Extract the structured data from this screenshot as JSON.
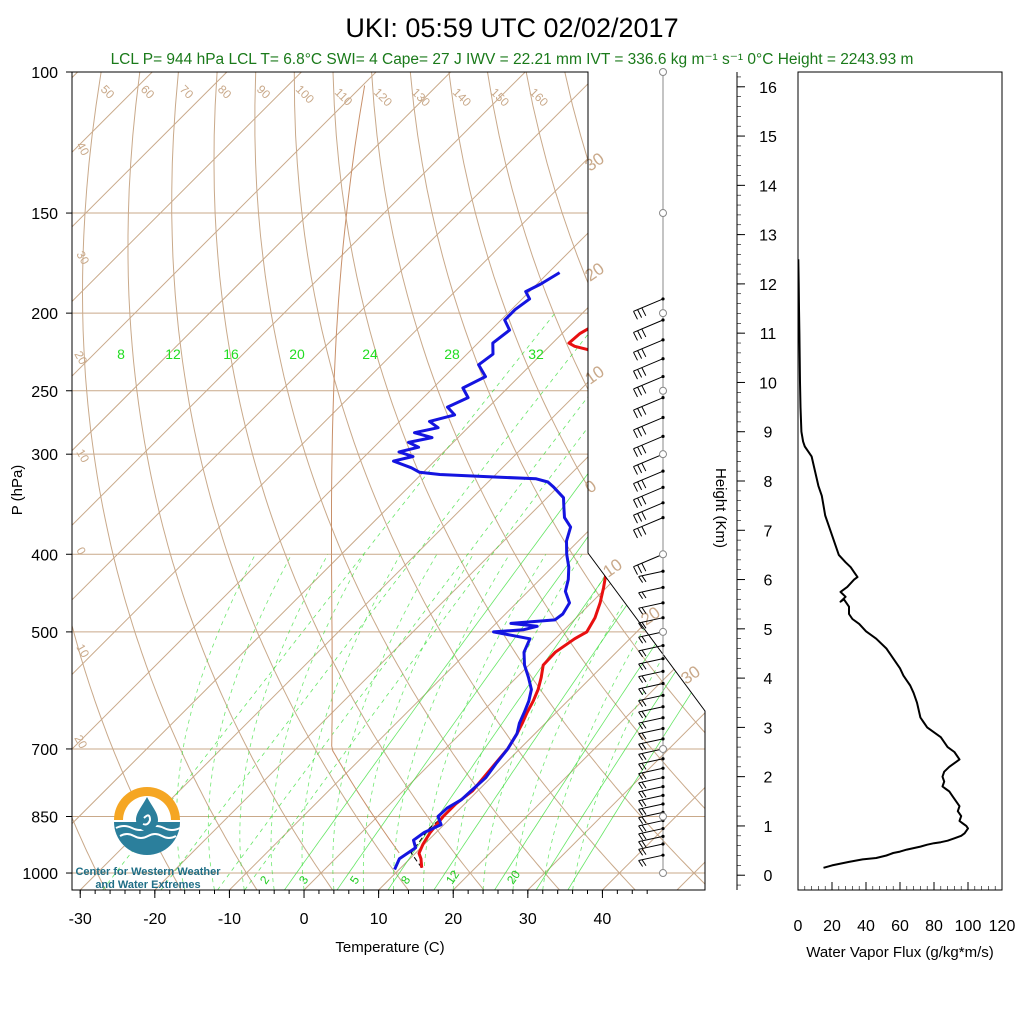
{
  "title": "UKI: 05:59 UTC 02/02/2017",
  "subtitle": "LCL P= 944 hPa  LCL T= 6.8°C  SWI= 4  Cape= 27 J  IWV = 22.21 mm  IVT = 336.6 kg m⁻¹ s⁻¹  0°C Height = 2243.93 m",
  "logo": {
    "line1": "Center for Western Weather",
    "line2": "and Water Extremes"
  },
  "colors": {
    "temperature": "#e81010",
    "dewpoint": "#1414e0",
    "isotherm": "#c9a98a",
    "mixing_ratio": "#33dd33",
    "flux": "#000000",
    "annotation": "#1a7a1a"
  },
  "chart_data": [
    {
      "type": "line",
      "title": "",
      "xlabel": "Temperature (C)",
      "ylabel": "P (hPa)",
      "xlim": [
        -34,
        52
      ],
      "ylim": [
        1050,
        100
      ],
      "y_scale": "log",
      "x_ticks": [
        -30,
        -20,
        -10,
        0,
        10,
        20,
        30,
        40
      ],
      "y_ticks": [
        100,
        150,
        200,
        250,
        300,
        400,
        500,
        700,
        850,
        1000
      ],
      "isotherm_labels": [
        "50",
        "60",
        "70",
        "80",
        "90",
        "100",
        "110",
        "120",
        "130",
        "140",
        "150",
        "160"
      ],
      "dry_adiabat_labels": [
        "40",
        "30",
        "20",
        "10",
        "0",
        "10",
        "20",
        "30"
      ],
      "right_dry_adiabat_labels": [
        "30",
        "20",
        "10",
        "0",
        "10",
        "20",
        "30"
      ],
      "mixing_ratio_top_labels": [
        "8",
        "12",
        "16",
        "20",
        "24",
        "28",
        "32"
      ],
      "mixing_ratio_bottom_labels": [
        "2",
        "3",
        "5",
        "8",
        "12",
        "20"
      ],
      "series": [
        {
          "name": "",
          "color": "#e81010",
          "points": [
            [
              12.8,
              985
            ],
            [
              11.5,
              960
            ],
            [
              10.5,
              945
            ],
            [
              9.8,
              920
            ],
            [
              9.2,
              890
            ],
            [
              8.8,
              850
            ],
            [
              8.8,
              820
            ],
            [
              9.3,
              790
            ],
            [
              9.0,
              760
            ],
            [
              8.7,
              730
            ],
            [
              8.4,
              700
            ],
            [
              7.6,
              670
            ],
            [
              6.9,
              650
            ],
            [
              6.1,
              630
            ],
            [
              5.4,
              610
            ],
            [
              4.5,
              590
            ],
            [
              3.3,
              570
            ],
            [
              1.9,
              550
            ],
            [
              1.8,
              530
            ],
            [
              2.6,
              510
            ],
            [
              3.3,
              500
            ],
            [
              2.5,
              480
            ],
            [
              1.2,
              460
            ],
            [
              -0.4,
              440
            ],
            [
              -2.2,
              420
            ],
            [
              -4.2,
              400
            ],
            [
              -6.5,
              380
            ],
            [
              -8.8,
              360
            ],
            [
              -10.8,
              345
            ],
            [
              -12.8,
              330
            ],
            [
              -14.5,
              315
            ],
            [
              -15.8,
              300
            ],
            [
              -17.3,
              285
            ],
            [
              -19.3,
              270
            ],
            [
              -21.0,
              260
            ],
            [
              -23.5,
              250
            ],
            [
              -27.0,
              238
            ],
            [
              -31.0,
              228
            ],
            [
              -34.5,
              222
            ],
            [
              -36.6,
              220
            ],
            [
              -37.8,
              218
            ],
            [
              -37.6,
              212
            ],
            [
              -36.6,
              206
            ],
            [
              -36.4,
              200
            ],
            [
              -34.8,
              196
            ],
            [
              -33.0,
              192
            ],
            [
              -30.5,
              188
            ],
            [
              -28.4,
              185
            ],
            [
              -27.4,
              182
            ],
            [
              -26.5,
              180
            ]
          ]
        },
        {
          "name": "",
          "color": "#1414e0",
          "points": [
            [
              9.4,
              990
            ],
            [
              8.6,
              960
            ],
            [
              9.3,
              930
            ],
            [
              8.0,
              910
            ],
            [
              8.4,
              890
            ],
            [
              9.6,
              870
            ],
            [
              8.1,
              850
            ],
            [
              8.2,
              830
            ],
            [
              9.0,
              810
            ],
            [
              9.1,
              790
            ],
            [
              9.3,
              760
            ],
            [
              8.8,
              730
            ],
            [
              8.4,
              700
            ],
            [
              7.6,
              670
            ],
            [
              6.5,
              650
            ],
            [
              5.7,
              630
            ],
            [
              4.8,
              610
            ],
            [
              3.6,
              590
            ],
            [
              1.6,
              570
            ],
            [
              -0.6,
              550
            ],
            [
              -2.4,
              530
            ],
            [
              -3.4,
              510
            ],
            [
              -9.2,
              500
            ],
            [
              -5.5,
              497
            ],
            [
              -4.1,
              492
            ],
            [
              -8.0,
              488
            ],
            [
              -2.6,
              483
            ],
            [
              -2.3,
              475
            ],
            [
              -2.9,
              460
            ],
            [
              -5.0,
              445
            ],
            [
              -6.2,
              430
            ],
            [
              -7.8,
              415
            ],
            [
              -9.8,
              400
            ],
            [
              -11.6,
              385
            ],
            [
              -12.9,
              370
            ],
            [
              -15.0,
              360
            ],
            [
              -16.4,
              350
            ],
            [
              -17.8,
              340
            ],
            [
              -20.5,
              330
            ],
            [
              -22.0,
              325
            ],
            [
              -24.0,
              322
            ],
            [
              -31.0,
              320
            ],
            [
              -37.5,
              318
            ],
            [
              -40.5,
              316
            ],
            [
              -42.2,
              312
            ],
            [
              -45.5,
              306
            ],
            [
              -43.5,
              302
            ],
            [
              -46.0,
              298
            ],
            [
              -44.0,
              294
            ],
            [
              -46.0,
              290
            ],
            [
              -43.5,
              286
            ],
            [
              -46.5,
              282
            ],
            [
              -44.0,
              278
            ],
            [
              -46.0,
              273
            ],
            [
              -43.5,
              268
            ],
            [
              -45.5,
              262
            ],
            [
              -44.0,
              255
            ],
            [
              -46.0,
              248
            ],
            [
              -44.5,
              240
            ],
            [
              -47.0,
              232
            ],
            [
              -46.5,
              225
            ],
            [
              -48.0,
              218
            ],
            [
              -47.5,
              210
            ],
            [
              -49.5,
              204
            ],
            [
              -49.5,
              198
            ],
            [
              -49.0,
              192
            ],
            [
              -50.5,
              188
            ],
            [
              -49.5,
              184
            ],
            [
              -49.0,
              181
            ],
            [
              -48.5,
              178
            ]
          ]
        }
      ],
      "wind_barb_levels_hPa": [
        950,
        920,
        900,
        880,
        860,
        840,
        820,
        800,
        780,
        760,
        740,
        720,
        700,
        680,
        660,
        640,
        620,
        600,
        580,
        560,
        540,
        520,
        500,
        480,
        460,
        440,
        420,
        400,
        360,
        345,
        330,
        315,
        300,
        285,
        270,
        255,
        240,
        228,
        216,
        204,
        192
      ]
    },
    {
      "type": "line",
      "title": "",
      "xlabel": "Water Vapor Flux (g/kg*m/s)",
      "ylabel": "Height (Km)",
      "xlim": [
        0,
        120
      ],
      "ylim": [
        -0.3,
        16.3
      ],
      "x_ticks": [
        0,
        20,
        40,
        60,
        80,
        100,
        120
      ],
      "y_ticks": [
        0,
        1,
        2,
        3,
        4,
        5,
        6,
        7,
        8,
        9,
        10,
        11,
        12,
        13,
        14,
        15,
        16
      ],
      "series": [
        {
          "name": "",
          "color": "#000000",
          "points": [
            [
              15,
              0.15
            ],
            [
              20,
              0.2
            ],
            [
              30,
              0.27
            ],
            [
              38,
              0.32
            ],
            [
              46,
              0.35
            ],
            [
              52,
              0.4
            ],
            [
              56,
              0.45
            ],
            [
              60,
              0.48
            ],
            [
              64,
              0.52
            ],
            [
              68,
              0.55
            ],
            [
              72,
              0.58
            ],
            [
              76,
              0.62
            ],
            [
              80,
              0.65
            ],
            [
              84,
              0.67
            ],
            [
              88,
              0.7
            ],
            [
              92,
              0.75
            ],
            [
              96,
              0.8
            ],
            [
              98,
              0.85
            ],
            [
              100,
              0.95
            ],
            [
              99,
              1.0
            ],
            [
              97,
              1.05
            ],
            [
              95,
              1.1
            ],
            [
              96,
              1.2
            ],
            [
              94,
              1.3
            ],
            [
              95,
              1.4
            ],
            [
              93,
              1.5
            ],
            [
              91,
              1.6
            ],
            [
              89,
              1.7
            ],
            [
              87,
              1.75
            ],
            [
              85,
              1.8
            ],
            [
              86,
              1.9
            ],
            [
              85,
              2.0
            ],
            [
              86,
              2.1
            ],
            [
              89,
              2.2
            ],
            [
              93,
              2.3
            ],
            [
              95,
              2.35
            ],
            [
              92,
              2.5
            ],
            [
              88,
              2.6
            ],
            [
              84,
              2.8
            ],
            [
              80,
              2.9
            ],
            [
              76,
              3.0
            ],
            [
              74,
              3.1
            ],
            [
              72,
              3.2
            ],
            [
              70,
              3.5
            ],
            [
              68,
              3.7
            ],
            [
              66,
              3.85
            ],
            [
              64,
              3.95
            ],
            [
              62,
              4.05
            ],
            [
              60,
              4.2
            ],
            [
              56,
              4.4
            ],
            [
              52,
              4.6
            ],
            [
              46,
              4.8
            ],
            [
              40,
              4.95
            ],
            [
              36,
              5.1
            ],
            [
              32,
              5.2
            ],
            [
              30,
              5.3
            ],
            [
              30,
              5.45
            ],
            [
              27,
              5.6
            ],
            [
              25,
              5.55
            ],
            [
              28,
              5.65
            ],
            [
              25,
              5.75
            ],
            [
              29,
              5.85
            ],
            [
              33,
              6.0
            ],
            [
              35,
              6.05
            ],
            [
              33,
              6.15
            ],
            [
              31,
              6.25
            ],
            [
              28,
              6.35
            ],
            [
              24,
              6.5
            ],
            [
              22,
              6.7
            ],
            [
              20,
              6.9
            ],
            [
              18,
              7.1
            ],
            [
              16,
              7.3
            ],
            [
              15,
              7.5
            ],
            [
              14,
              7.7
            ],
            [
              12,
              7.9
            ],
            [
              10,
              8.2
            ],
            [
              8,
              8.5
            ],
            [
              6,
              8.6
            ],
            [
              4,
              8.7
            ],
            [
              3,
              8.8
            ],
            [
              2,
              9.0
            ],
            [
              1.5,
              9.5
            ],
            [
              1.2,
              10
            ],
            [
              1,
              10.5
            ],
            [
              0.8,
              11
            ],
            [
              0.6,
              11.5
            ],
            [
              0.4,
              12
            ],
            [
              0.2,
              12.5
            ]
          ]
        }
      ]
    }
  ]
}
